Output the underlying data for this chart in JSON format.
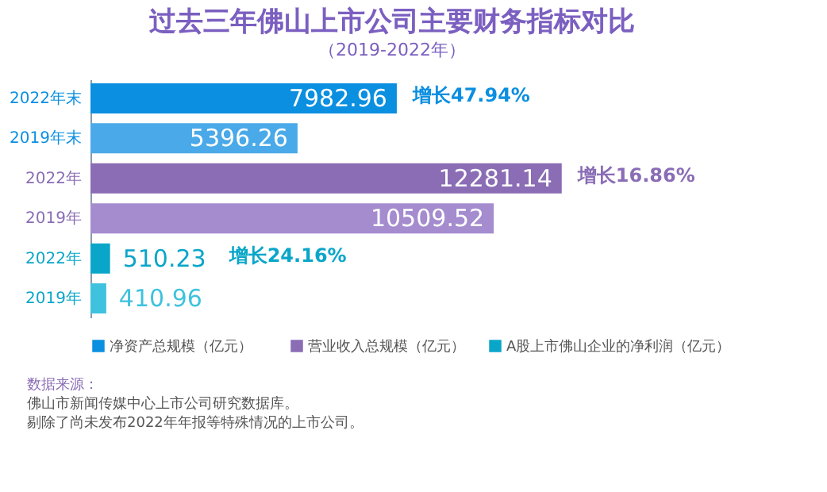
{
  "chart_data": {
    "type": "bar",
    "orientation": "horizontal",
    "title": "过去三年佛山上市公司主要财务指标对比",
    "subtitle": "（2019-2022年）",
    "categories": [
      "2022年末",
      "2019年末",
      "2022年",
      "2019年",
      "2022年",
      "2019年"
    ],
    "series": [
      {
        "name": "净资产总规模（亿元）",
        "color": "#0b8fe0",
        "colors": [
          "#0b8fe0",
          "#4aa9e8",
          null,
          null,
          null,
          null
        ],
        "values": [
          7982.96,
          5396.26,
          null,
          null,
          null,
          null
        ]
      },
      {
        "name": "营业收入总规模（亿元）",
        "color": "#8a6db5",
        "colors": [
          null,
          null,
          "#8a6db5",
          "#a48ccf",
          null,
          null
        ],
        "values": [
          null,
          null,
          12281.14,
          10509.52,
          null,
          null
        ]
      },
      {
        "name": "A股上市佛山企业的净利润（亿元）",
        "color": "#0aa6c9",
        "colors": [
          null,
          null,
          null,
          null,
          "#0aa6c9",
          "#3fc2de"
        ],
        "values": [
          null,
          null,
          null,
          null,
          510.23,
          410.96
        ]
      }
    ],
    "data_labels": true,
    "legend": "bottom",
    "grid": false,
    "annotations": [
      "增长47.94%",
      "增长16.86%",
      "增长24.16%",
      "数据来源：",
      "佛山市新闻传媒中心上市公司研究数据库。",
      "剔除了尚未发布2022年年报等特殊情况的上市公司。"
    ]
  }
}
